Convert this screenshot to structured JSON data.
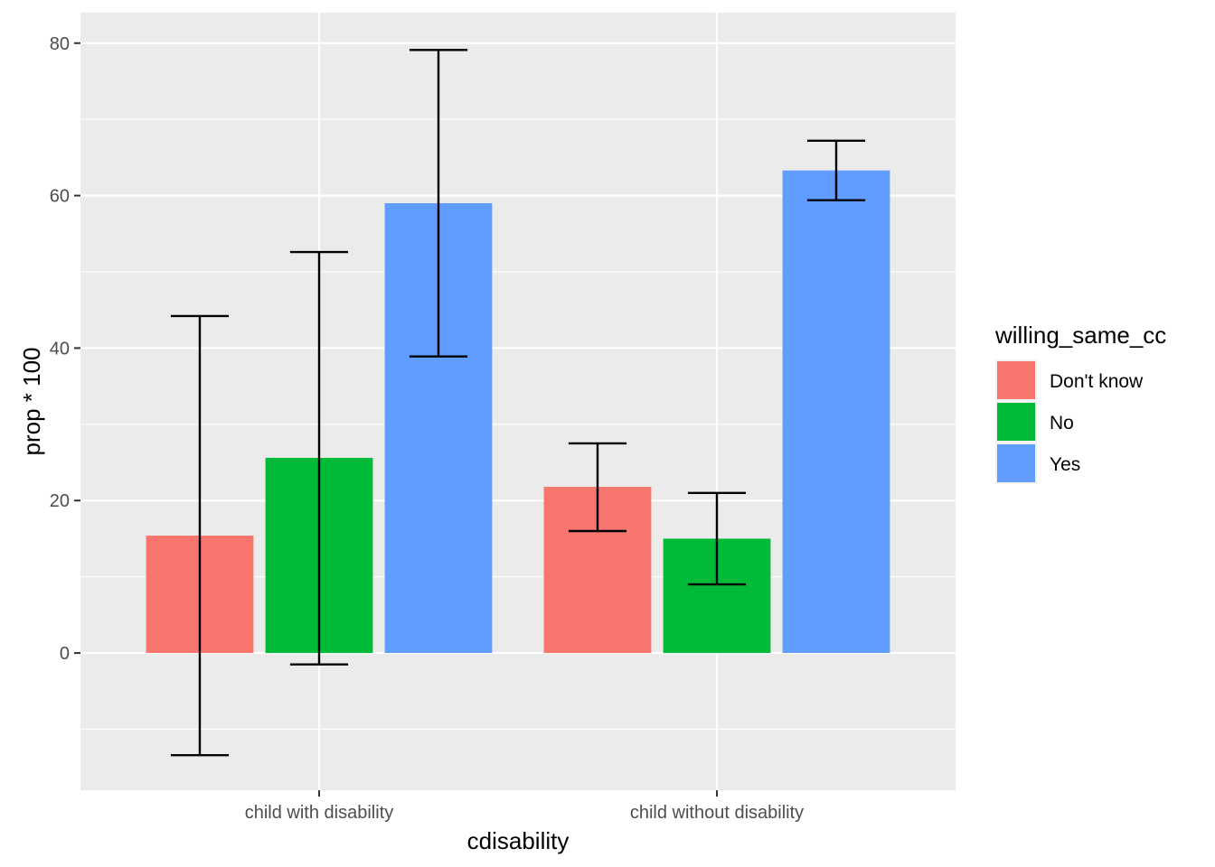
{
  "chart_data": {
    "type": "bar",
    "title": "",
    "xlabel": "cdisability",
    "ylabel": "prop * 100",
    "categories": [
      "child with disability",
      "child without disability"
    ],
    "series": [
      {
        "name": "Don't know",
        "color": "#F8766D",
        "values": [
          15.4,
          21.8
        ],
        "err_low": [
          -13.4,
          16.0
        ],
        "err_high": [
          44.2,
          27.5
        ]
      },
      {
        "name": "No",
        "color": "#00BA38",
        "values": [
          25.6,
          15.0
        ],
        "err_low": [
          -1.5,
          9.0
        ],
        "err_high": [
          52.6,
          21.0
        ]
      },
      {
        "name": "Yes",
        "color": "#619CFF",
        "values": [
          59.0,
          63.3
        ],
        "err_low": [
          38.9,
          59.4
        ],
        "err_high": [
          79.1,
          67.2
        ]
      }
    ],
    "ylim": [
      -18,
      84
    ],
    "yticks": [
      0,
      20,
      40,
      60,
      80
    ],
    "grid": true,
    "legend": {
      "title": "willing_same_cc",
      "position": "right"
    },
    "panel_background": "#EBEBEB",
    "grid_color": "#FFFFFF"
  }
}
